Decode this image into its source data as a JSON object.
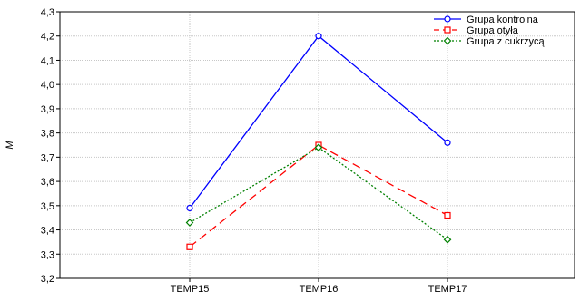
{
  "chart_data": {
    "type": "line",
    "categories": [
      "TEMP15",
      "TEMP16",
      "TEMP17"
    ],
    "ylabel": "M",
    "xlabel": "",
    "ylim": [
      3.2,
      4.3
    ],
    "yticks": [
      "3,2",
      "3,3",
      "3,4",
      "3,5",
      "3,6",
      "3,7",
      "3,8",
      "3,9",
      "4,0",
      "4,1",
      "4,2",
      "4,3"
    ],
    "grid": true,
    "legend_position": "top-right",
    "series": [
      {
        "name": "Grupa kontrolna",
        "values": [
          3.49,
          4.2,
          3.76
        ],
        "color": "#0000ff",
        "dash": "solid",
        "marker": "circle"
      },
      {
        "name": "Grupa otyła",
        "values": [
          3.33,
          3.75,
          3.46
        ],
        "color": "#ff0000",
        "dash": "long-dash",
        "marker": "square"
      },
      {
        "name": "Grupa z cukrzycą",
        "values": [
          3.43,
          3.74,
          3.36
        ],
        "color": "#008000",
        "dash": "dotted",
        "marker": "diamond"
      }
    ]
  }
}
